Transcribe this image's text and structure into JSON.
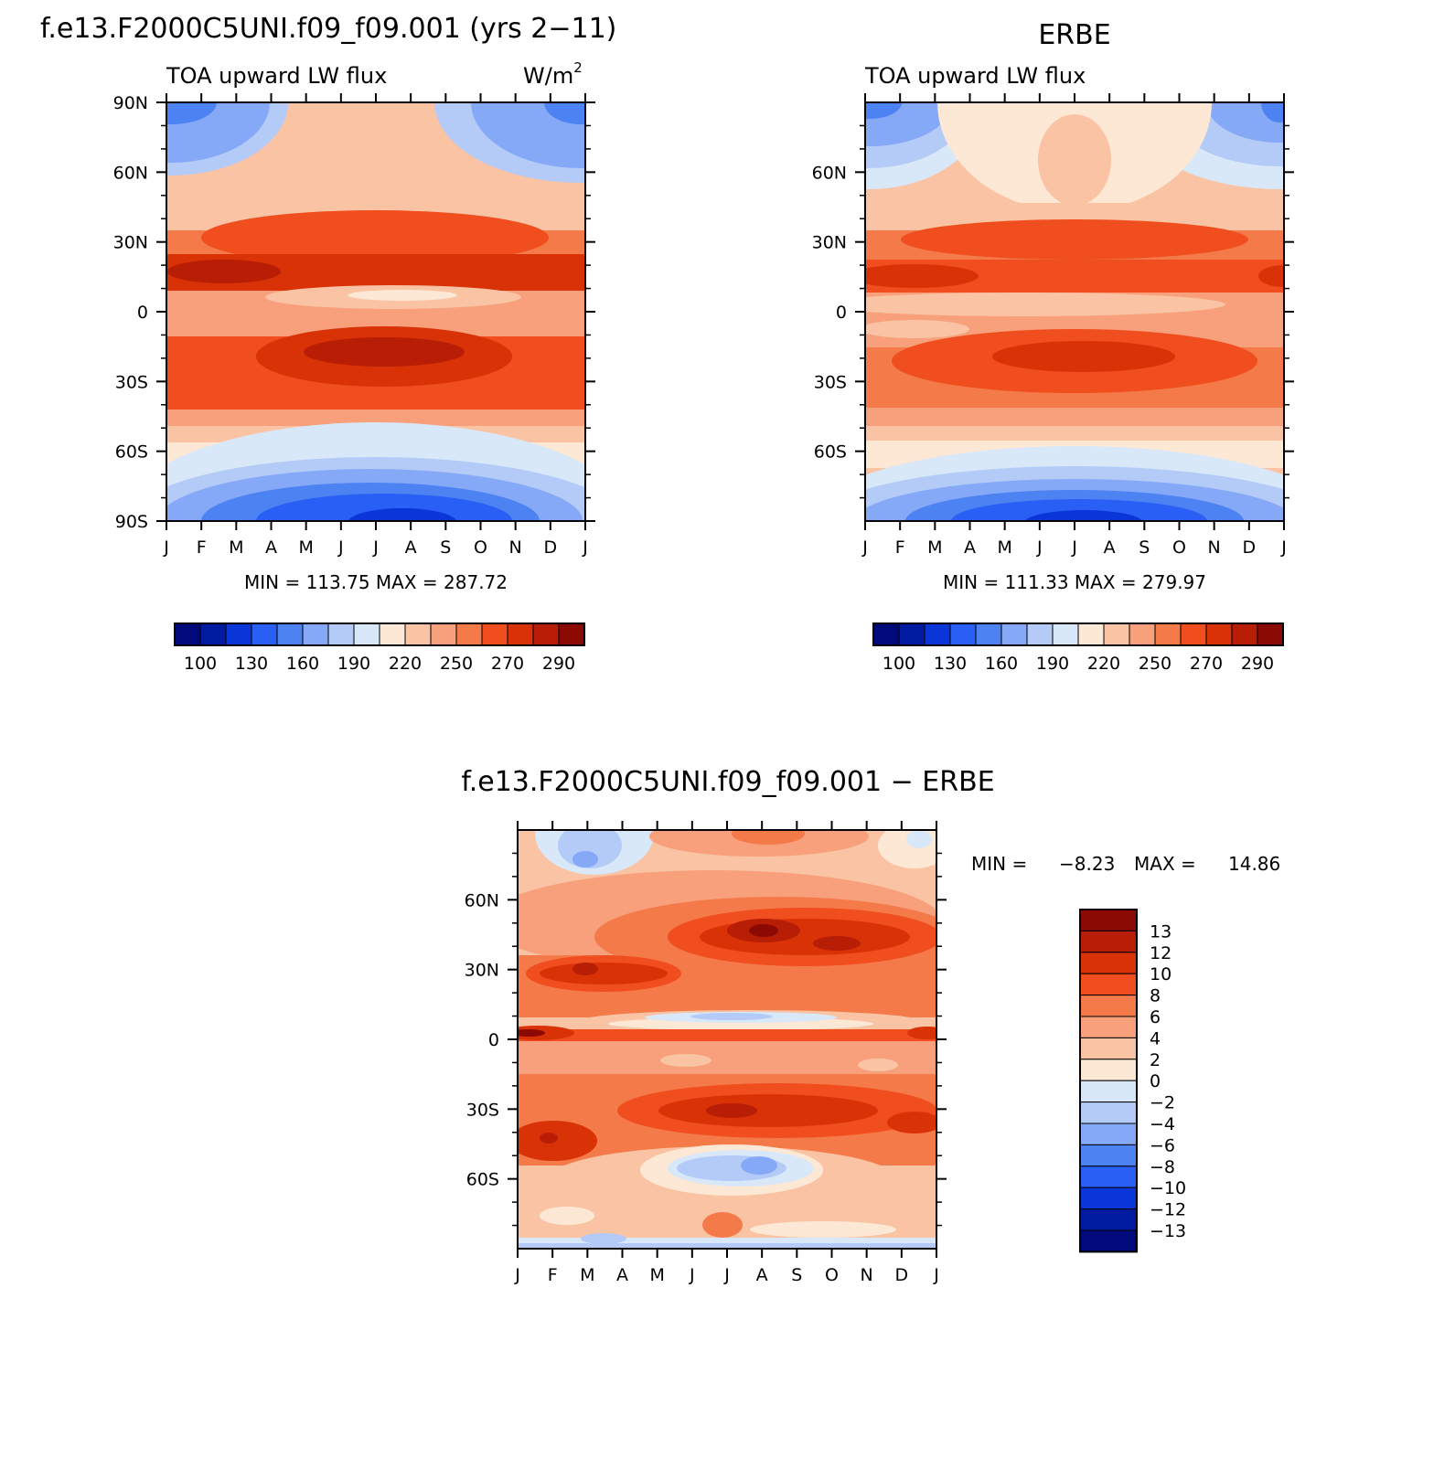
{
  "chart_data": [
    {
      "type": "heatmap",
      "title": "f.e13.F2000C5UNI.f09_f09.001 (yrs 2−11)",
      "subtitle": "TOA upward LW flux",
      "units_label": "W/m",
      "units_power": "2",
      "x_ticks": [
        "J",
        "F",
        "M",
        "A",
        "M",
        "J",
        "J",
        "A",
        "S",
        "O",
        "N",
        "D",
        "J"
      ],
      "y_ticks": [
        "90N",
        "60N",
        "30N",
        "0",
        "30S",
        "60S",
        "90S"
      ],
      "ylim": [
        -90,
        90
      ],
      "stats": "MIN =  113.75  MAX =  287.72",
      "colorbar_labels": [
        "100",
        "130",
        "160",
        "190",
        "220",
        "250",
        "270",
        "290"
      ],
      "levels": [
        100,
        115,
        130,
        145,
        160,
        175,
        190,
        205,
        220,
        235,
        250,
        260,
        270,
        280,
        290
      ],
      "data_values": {
        "north_pole_winter": 165,
        "north_pole_summer": 210,
        "nh_subtropics": 275,
        "equator": 230,
        "sh_subtropics": 278,
        "south_pole_winter": 113.75,
        "south_pole_summer": 170
      },
      "min": 113.75,
      "max": 287.72
    },
    {
      "type": "heatmap",
      "title": "ERBE",
      "subtitle": "TOA upward LW flux",
      "x_ticks": [
        "J",
        "F",
        "M",
        "A",
        "M",
        "J",
        "J",
        "A",
        "S",
        "O",
        "N",
        "D",
        "J"
      ],
      "y_ticks": [
        "60N",
        "30N",
        "0",
        "30S",
        "60S"
      ],
      "ylim": [
        -90,
        90
      ],
      "stats": "MIN =  111.33  MAX =  279.97",
      "colorbar_labels": [
        "100",
        "130",
        "160",
        "190",
        "220",
        "250",
        "270",
        "290"
      ],
      "levels": [
        100,
        115,
        130,
        145,
        160,
        175,
        190,
        205,
        220,
        235,
        250,
        260,
        270,
        280,
        290
      ],
      "data_values": {
        "north_pole_winter": 165,
        "north_pole_summer": 210,
        "nh_subtropics": 268,
        "equator": 235,
        "sh_subtropics": 272,
        "south_pole_winter": 111.33,
        "south_pole_summer": 170
      },
      "min": 111.33,
      "max": 279.97
    },
    {
      "type": "heatmap",
      "title": "f.e13.F2000C5UNI.f09_f09.001  −  ERBE",
      "x_ticks": [
        "J",
        "F",
        "M",
        "A",
        "M",
        "J",
        "J",
        "A",
        "S",
        "O",
        "N",
        "D",
        "J"
      ],
      "y_ticks": [
        "60N",
        "30N",
        "0",
        "30S",
        "60S"
      ],
      "ylim": [
        -90,
        90
      ],
      "stats_min_label": "MIN =",
      "stats_min": "−8.23",
      "stats_max_label": "MAX =",
      "stats_max": "14.86",
      "colorbar_labels": [
        "13",
        "12",
        "10",
        "8",
        "6",
        "4",
        "2",
        "0",
        "−2",
        "−4",
        "−6",
        "−8",
        "−10",
        "−12",
        "−13"
      ],
      "levels": [
        -13,
        -12,
        -10,
        -8,
        -6,
        -4,
        -2,
        0,
        2,
        4,
        6,
        8,
        10,
        12,
        13
      ],
      "min": -8.23,
      "max": 14.86
    }
  ],
  "palette": [
    "#000a7a",
    "#001aa0",
    "#0a35d8",
    "#2a5ff5",
    "#4c82f2",
    "#86a9f7",
    "#b4cbf8",
    "#d8e8f8",
    "#fde8d6",
    "#fac3a3",
    "#f7a07b",
    "#f47a4a",
    "#f04e1e",
    "#d93207",
    "#b81d06",
    "#8b0a03"
  ]
}
